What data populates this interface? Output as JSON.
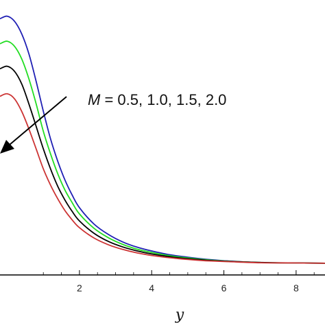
{
  "chart_data": {
    "type": "line",
    "title": "",
    "xlabel": "y",
    "ylabel": "",
    "xlim": [
      -0.2,
      8.8
    ],
    "ylim": [
      0,
      1.0
    ],
    "x_ticks": [
      2,
      4,
      6,
      8
    ],
    "x_tick_labels": [
      "2",
      "4",
      "6",
      "8"
    ],
    "grid": false,
    "annotation": {
      "variable": "M",
      "equals": " = ",
      "values": "0.5, 1.0, 1.5, 2.0"
    },
    "series": [
      {
        "color": "#1f1fb4",
        "x": [
          -0.2,
          0.0,
          0.2,
          0.4,
          0.6,
          0.8,
          1.0,
          1.2,
          1.4,
          1.6,
          1.8,
          2.0,
          2.4,
          2.8,
          3.2,
          3.6,
          4.0,
          4.5,
          5.0,
          5.5,
          6.0,
          7.0,
          8.0,
          8.8
        ],
        "y": [
          0.98,
          0.99,
          0.97,
          0.92,
          0.84,
          0.73,
          0.61,
          0.5,
          0.41,
          0.335,
          0.275,
          0.225,
          0.16,
          0.118,
          0.088,
          0.067,
          0.052,
          0.037,
          0.027,
          0.019,
          0.013,
          0.006,
          0.004,
          0.003
        ]
      },
      {
        "color": "#22dd22",
        "x": [
          -0.2,
          0.0,
          0.2,
          0.4,
          0.6,
          0.8,
          1.0,
          1.2,
          1.4,
          1.6,
          1.8,
          2.0,
          2.4,
          2.8,
          3.2,
          3.6,
          4.0,
          4.5,
          5.0,
          5.5,
          6.0,
          7.0,
          8.0,
          8.8
        ],
        "y": [
          0.88,
          0.89,
          0.87,
          0.82,
          0.74,
          0.64,
          0.53,
          0.44,
          0.36,
          0.295,
          0.245,
          0.2,
          0.143,
          0.105,
          0.078,
          0.059,
          0.046,
          0.033,
          0.024,
          0.017,
          0.012,
          0.006,
          0.004,
          0.003
        ]
      },
      {
        "color": "#000000",
        "x": [
          -0.2,
          0.0,
          0.2,
          0.4,
          0.6,
          0.8,
          1.0,
          1.2,
          1.4,
          1.6,
          1.8,
          2.0,
          2.4,
          2.8,
          3.2,
          3.6,
          4.0,
          4.5,
          5.0,
          5.5,
          6.0,
          7.0,
          8.0,
          8.8
        ],
        "y": [
          0.78,
          0.79,
          0.77,
          0.72,
          0.64,
          0.55,
          0.46,
          0.38,
          0.31,
          0.255,
          0.21,
          0.172,
          0.123,
          0.09,
          0.068,
          0.052,
          0.04,
          0.029,
          0.021,
          0.015,
          0.011,
          0.006,
          0.004,
          0.003
        ]
      },
      {
        "color": "#cc3333",
        "x": [
          -0.2,
          0.0,
          0.2,
          0.4,
          0.6,
          0.8,
          1.0,
          1.2,
          1.4,
          1.6,
          1.8,
          2.0,
          2.4,
          2.8,
          3.2,
          3.6,
          4.0,
          4.5,
          5.0,
          5.5,
          6.0,
          7.0,
          8.0,
          8.8
        ],
        "y": [
          0.67,
          0.68,
          0.66,
          0.61,
          0.54,
          0.46,
          0.38,
          0.315,
          0.26,
          0.213,
          0.176,
          0.145,
          0.104,
          0.077,
          0.058,
          0.044,
          0.034,
          0.025,
          0.018,
          0.013,
          0.01,
          0.005,
          0.004,
          0.003
        ]
      }
    ]
  }
}
